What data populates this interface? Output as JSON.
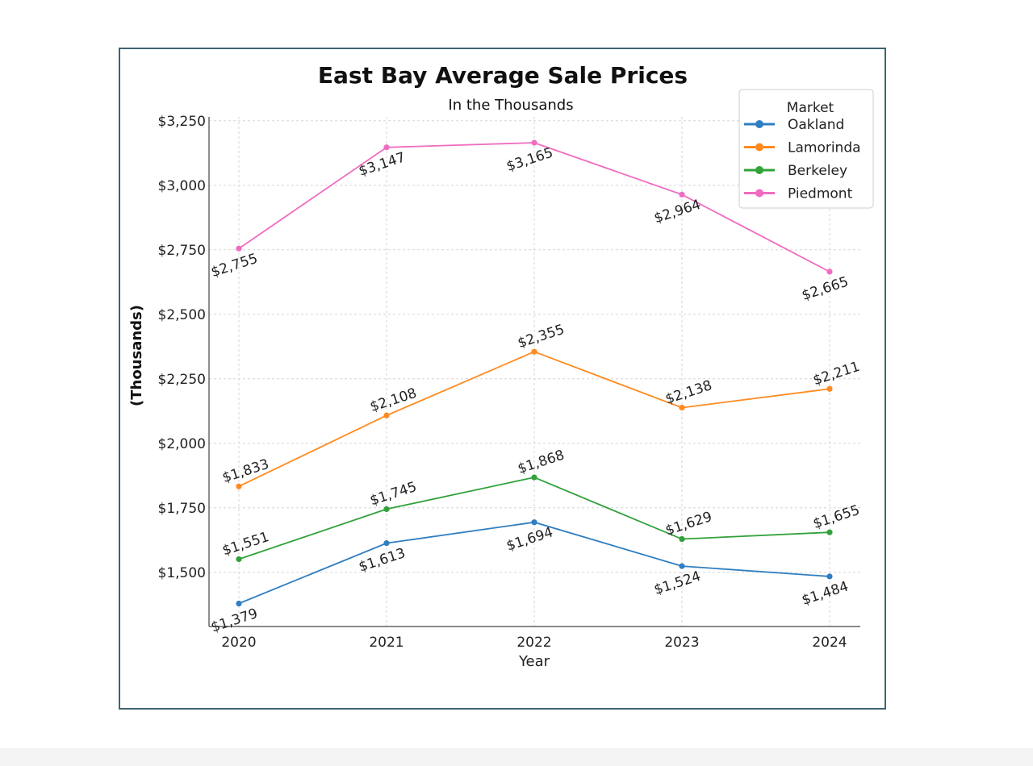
{
  "chart_data": {
    "type": "line",
    "title": "East Bay Average Sale Prices",
    "subtitle": "In the Thousands",
    "xlabel": "Year",
    "ylabel": "(Thousands)",
    "x": [
      "2020",
      "2021",
      "2022",
      "2023",
      "2024"
    ],
    "ylim": [
      1290,
      3265
    ],
    "yticks": [
      1500,
      1750,
      2000,
      2250,
      2500,
      2750,
      3000,
      3250
    ],
    "ytick_labels": [
      "$1,500",
      "$1,750",
      "$2,000",
      "$2,250",
      "$2,500",
      "$2,750",
      "$3,000",
      "$3,250"
    ],
    "grid": true,
    "legend": {
      "title": "Market",
      "position": "top-right"
    },
    "series": [
      {
        "name": "Oakland",
        "color": "#2f7ec1",
        "values": [
          1379,
          1613,
          1694,
          1524,
          1484
        ],
        "labels": [
          "$1,379",
          "$1,613",
          "$1,694",
          "$1,524",
          "$1,484"
        ],
        "label_pos": [
          "below",
          "below",
          "below",
          "below",
          "below"
        ]
      },
      {
        "name": "Lamorinda",
        "color": "#ff8a1f",
        "values": [
          1833,
          2108,
          2355,
          2138,
          2211
        ],
        "labels": [
          "$1,833",
          "$2,108",
          "$2,355",
          "$2,138",
          "$2,211"
        ],
        "label_pos": [
          "above",
          "above",
          "above",
          "above",
          "above"
        ]
      },
      {
        "name": "Berkeley",
        "color": "#31a13a",
        "values": [
          1551,
          1745,
          1868,
          1629,
          1655
        ],
        "labels": [
          "$1,551",
          "$1,745",
          "$1,868",
          "$1,629",
          "$1,655"
        ],
        "label_pos": [
          "above",
          "above",
          "above",
          "above",
          "above"
        ]
      },
      {
        "name": "Piedmont",
        "color": "#f06cc0",
        "values": [
          2755,
          3147,
          3165,
          2964,
          2665
        ],
        "labels": [
          "$2,755",
          "$3,147",
          "$3,165",
          "$2,964",
          "$2,665"
        ],
        "label_pos": [
          "below",
          "below",
          "below",
          "below",
          "below"
        ]
      }
    ]
  }
}
